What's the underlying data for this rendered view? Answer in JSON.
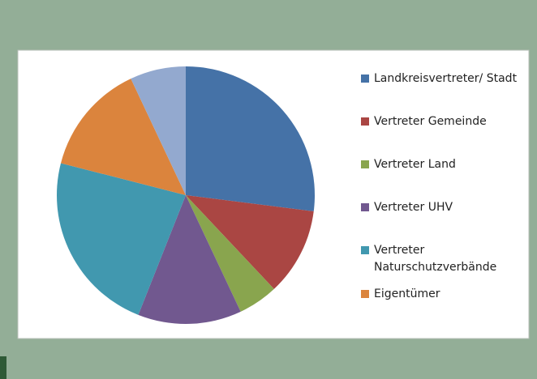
{
  "chart_data": {
    "type": "pie",
    "categories": [
      "Landkreisvertreter/ Stadt",
      "Vertreter Gemeinde",
      "Vertreter Land",
      "Vertreter UHV",
      "Vertreter Naturschutzverbände",
      "Eigentümer",
      null
    ],
    "values": [
      27,
      11,
      5,
      13,
      23,
      14,
      7
    ],
    "colors": [
      "#4572a7",
      "#aa4643",
      "#89a54e",
      "#71588f",
      "#4198af",
      "#db843d",
      "#93a9cf"
    ],
    "legend": "right"
  }
}
